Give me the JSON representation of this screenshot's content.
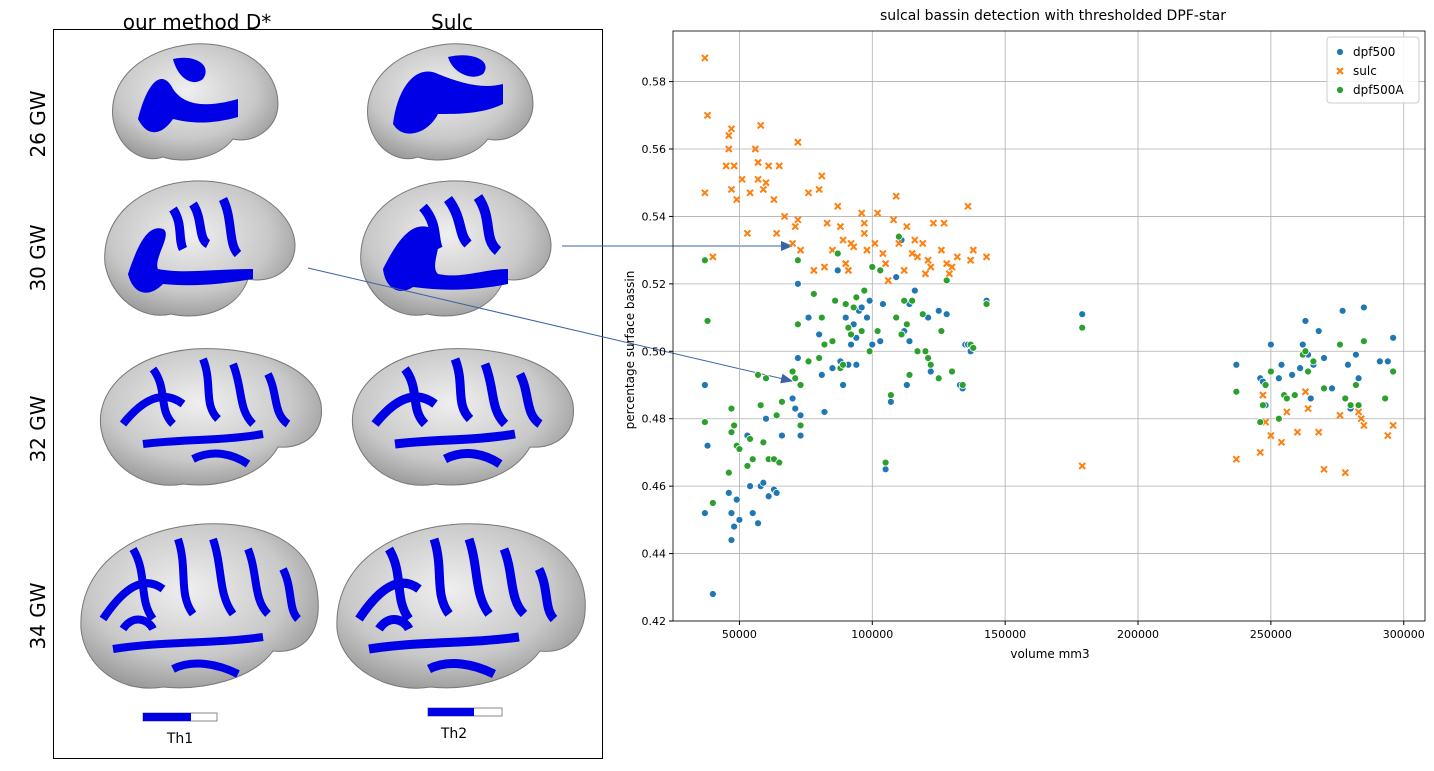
{
  "left_panel": {
    "col_titles": [
      "our method D*",
      "Sulc"
    ],
    "row_labels": [
      "26 GW",
      "30 GW",
      "32 GW",
      "34 GW"
    ],
    "threshold_labels": [
      "Th1",
      "Th2"
    ],
    "colors": {
      "basin": "#0000e6",
      "cortex": "#bfbfbf"
    }
  },
  "chart_data": {
    "type": "scatter",
    "title": "sulcal bassin detection with thresholded DPF-star",
    "xlabel": "volume  mm3",
    "ylabel": "percentage surface bassin",
    "xlim": [
      25000,
      308000
    ],
    "ylim": [
      0.42,
      0.595
    ],
    "xticks": [
      50000,
      100000,
      150000,
      200000,
      250000,
      300000
    ],
    "yticks": [
      0.42,
      0.44,
      0.46,
      0.48,
      0.5,
      0.52,
      0.54,
      0.56,
      0.58
    ],
    "grid": true,
    "legend_position": "top-right",
    "series": [
      {
        "name": "dpf500",
        "color": "#1f77b4",
        "marker": "circle",
        "points": [
          [
            37000,
            0.49
          ],
          [
            38000,
            0.472
          ],
          [
            37000,
            0.452
          ],
          [
            40000,
            0.428
          ],
          [
            46000,
            0.458
          ],
          [
            47000,
            0.452
          ],
          [
            47000,
            0.444
          ],
          [
            48000,
            0.448
          ],
          [
            49000,
            0.456
          ],
          [
            50000,
            0.45
          ],
          [
            53000,
            0.475
          ],
          [
            54000,
            0.46
          ],
          [
            55000,
            0.452
          ],
          [
            57000,
            0.449
          ],
          [
            58000,
            0.46
          ],
          [
            59000,
            0.461
          ],
          [
            60000,
            0.48
          ],
          [
            61000,
            0.457
          ],
          [
            63000,
            0.459
          ],
          [
            64000,
            0.458
          ],
          [
            66000,
            0.475
          ],
          [
            70000,
            0.486
          ],
          [
            71000,
            0.483
          ],
          [
            72000,
            0.498
          ],
          [
            72000,
            0.52
          ],
          [
            73000,
            0.481
          ],
          [
            73000,
            0.475
          ],
          [
            76000,
            0.51
          ],
          [
            80000,
            0.505
          ],
          [
            81000,
            0.493
          ],
          [
            82000,
            0.482
          ],
          [
            85000,
            0.495
          ],
          [
            87000,
            0.524
          ],
          [
            88000,
            0.497
          ],
          [
            89000,
            0.49
          ],
          [
            90000,
            0.51
          ],
          [
            91000,
            0.496
          ],
          [
            92000,
            0.502
          ],
          [
            93000,
            0.508
          ],
          [
            94000,
            0.504
          ],
          [
            94000,
            0.496
          ],
          [
            95000,
            0.512
          ],
          [
            96000,
            0.513
          ],
          [
            98000,
            0.51
          ],
          [
            99000,
            0.515
          ],
          [
            100000,
            0.502
          ],
          [
            103000,
            0.503
          ],
          [
            104000,
            0.514
          ],
          [
            105000,
            0.465
          ],
          [
            107000,
            0.485
          ],
          [
            109000,
            0.522
          ],
          [
            111000,
            0.533
          ],
          [
            112000,
            0.506
          ],
          [
            113000,
            0.49
          ],
          [
            114000,
            0.503
          ],
          [
            114000,
            0.514
          ],
          [
            116000,
            0.518
          ],
          [
            119000,
            0.511
          ],
          [
            121000,
            0.51
          ],
          [
            122000,
            0.494
          ],
          [
            125000,
            0.512
          ],
          [
            128000,
            0.511
          ],
          [
            133000,
            0.49
          ],
          [
            134000,
            0.489
          ],
          [
            135000,
            0.502
          ],
          [
            136000,
            0.502
          ],
          [
            137000,
            0.5
          ],
          [
            143000,
            0.515
          ],
          [
            179000,
            0.511
          ],
          [
            237000,
            0.496
          ],
          [
            246000,
            0.492
          ],
          [
            247000,
            0.491
          ],
          [
            248000,
            0.484
          ],
          [
            250000,
            0.502
          ],
          [
            253000,
            0.492
          ],
          [
            254000,
            0.496
          ],
          [
            258000,
            0.493
          ],
          [
            261000,
            0.495
          ],
          [
            262000,
            0.502
          ],
          [
            263000,
            0.509
          ],
          [
            264000,
            0.499
          ],
          [
            265000,
            0.486
          ],
          [
            266000,
            0.496
          ],
          [
            268000,
            0.506
          ],
          [
            270000,
            0.498
          ],
          [
            273000,
            0.489
          ],
          [
            277000,
            0.512
          ],
          [
            279000,
            0.496
          ],
          [
            280000,
            0.483
          ],
          [
            282000,
            0.499
          ],
          [
            283000,
            0.492
          ],
          [
            285000,
            0.513
          ],
          [
            291000,
            0.497
          ],
          [
            294000,
            0.497
          ],
          [
            296000,
            0.504
          ]
        ]
      },
      {
        "name": "sulc",
        "color": "#ff7f0e",
        "marker": "x",
        "points": [
          [
            37000,
            0.587
          ],
          [
            38000,
            0.57
          ],
          [
            37000,
            0.547
          ],
          [
            40000,
            0.528
          ],
          [
            45000,
            0.555
          ],
          [
            46000,
            0.564
          ],
          [
            46000,
            0.56
          ],
          [
            47000,
            0.548
          ],
          [
            47000,
            0.566
          ],
          [
            48000,
            0.555
          ],
          [
            49000,
            0.545
          ],
          [
            51000,
            0.551
          ],
          [
            53000,
            0.535
          ],
          [
            54000,
            0.547
          ],
          [
            56000,
            0.56
          ],
          [
            57000,
            0.556
          ],
          [
            57000,
            0.551
          ],
          [
            58000,
            0.567
          ],
          [
            59000,
            0.548
          ],
          [
            60000,
            0.55
          ],
          [
            61000,
            0.555
          ],
          [
            63000,
            0.545
          ],
          [
            64000,
            0.535
          ],
          [
            65000,
            0.555
          ],
          [
            67000,
            0.54
          ],
          [
            70000,
            0.532
          ],
          [
            71000,
            0.537
          ],
          [
            72000,
            0.539
          ],
          [
            72000,
            0.562
          ],
          [
            73000,
            0.53
          ],
          [
            76000,
            0.547
          ],
          [
            78000,
            0.524
          ],
          [
            80000,
            0.548
          ],
          [
            81000,
            0.552
          ],
          [
            82000,
            0.525
          ],
          [
            83000,
            0.538
          ],
          [
            85000,
            0.53
          ],
          [
            87000,
            0.543
          ],
          [
            88000,
            0.537
          ],
          [
            89000,
            0.533
          ],
          [
            90000,
            0.526
          ],
          [
            91000,
            0.524
          ],
          [
            92000,
            0.532
          ],
          [
            93000,
            0.531
          ],
          [
            96000,
            0.541
          ],
          [
            97000,
            0.538
          ],
          [
            97000,
            0.535
          ],
          [
            98000,
            0.53
          ],
          [
            101000,
            0.532
          ],
          [
            102000,
            0.541
          ],
          [
            104000,
            0.529
          ],
          [
            105000,
            0.526
          ],
          [
            106000,
            0.521
          ],
          [
            108000,
            0.539
          ],
          [
            109000,
            0.546
          ],
          [
            110000,
            0.532
          ],
          [
            112000,
            0.524
          ],
          [
            113000,
            0.537
          ],
          [
            115000,
            0.529
          ],
          [
            116000,
            0.533
          ],
          [
            117000,
            0.528
          ],
          [
            119000,
            0.532
          ],
          [
            120000,
            0.523
          ],
          [
            121000,
            0.527
          ],
          [
            122000,
            0.525
          ],
          [
            123000,
            0.538
          ],
          [
            126000,
            0.53
          ],
          [
            127000,
            0.538
          ],
          [
            128000,
            0.526
          ],
          [
            129000,
            0.523
          ],
          [
            130000,
            0.525
          ],
          [
            132000,
            0.528
          ],
          [
            136000,
            0.543
          ],
          [
            137000,
            0.527
          ],
          [
            138000,
            0.53
          ],
          [
            143000,
            0.528
          ],
          [
            179000,
            0.466
          ],
          [
            237000,
            0.468
          ],
          [
            246000,
            0.47
          ],
          [
            247000,
            0.487
          ],
          [
            248000,
            0.479
          ],
          [
            250000,
            0.475
          ],
          [
            254000,
            0.473
          ],
          [
            256000,
            0.482
          ],
          [
            260000,
            0.476
          ],
          [
            263000,
            0.488
          ],
          [
            264000,
            0.483
          ],
          [
            268000,
            0.476
          ],
          [
            270000,
            0.465
          ],
          [
            276000,
            0.481
          ],
          [
            278000,
            0.464
          ],
          [
            283000,
            0.482
          ],
          [
            284000,
            0.48
          ],
          [
            285000,
            0.478
          ],
          [
            294000,
            0.475
          ],
          [
            296000,
            0.478
          ]
        ]
      },
      {
        "name": "dpf500A",
        "color": "#2ca02c",
        "marker": "circle",
        "points": [
          [
            37000,
            0.527
          ],
          [
            38000,
            0.509
          ],
          [
            37000,
            0.479
          ],
          [
            40000,
            0.455
          ],
          [
            46000,
            0.464
          ],
          [
            47000,
            0.483
          ],
          [
            47000,
            0.476
          ],
          [
            48000,
            0.478
          ],
          [
            49000,
            0.472
          ],
          [
            50000,
            0.471
          ],
          [
            53000,
            0.466
          ],
          [
            54000,
            0.474
          ],
          [
            55000,
            0.468
          ],
          [
            57000,
            0.493
          ],
          [
            58000,
            0.484
          ],
          [
            59000,
            0.473
          ],
          [
            60000,
            0.492
          ],
          [
            61000,
            0.468
          ],
          [
            63000,
            0.468
          ],
          [
            64000,
            0.481
          ],
          [
            65000,
            0.467
          ],
          [
            66000,
            0.485
          ],
          [
            70000,
            0.494
          ],
          [
            71000,
            0.492
          ],
          [
            72000,
            0.508
          ],
          [
            72000,
            0.527
          ],
          [
            73000,
            0.49
          ],
          [
            73000,
            0.478
          ],
          [
            76000,
            0.497
          ],
          [
            78000,
            0.517
          ],
          [
            80000,
            0.498
          ],
          [
            81000,
            0.51
          ],
          [
            82000,
            0.502
          ],
          [
            85000,
            0.503
          ],
          [
            86000,
            0.515
          ],
          [
            87000,
            0.529
          ],
          [
            88000,
            0.495
          ],
          [
            89000,
            0.496
          ],
          [
            90000,
            0.514
          ],
          [
            91000,
            0.507
          ],
          [
            92000,
            0.505
          ],
          [
            93000,
            0.513
          ],
          [
            94000,
            0.516
          ],
          [
            96000,
            0.506
          ],
          [
            97000,
            0.518
          ],
          [
            99000,
            0.5
          ],
          [
            100000,
            0.525
          ],
          [
            102000,
            0.506
          ],
          [
            103000,
            0.524
          ],
          [
            105000,
            0.467
          ],
          [
            107000,
            0.487
          ],
          [
            109000,
            0.51
          ],
          [
            110000,
            0.534
          ],
          [
            111000,
            0.505
          ],
          [
            112000,
            0.515
          ],
          [
            113000,
            0.508
          ],
          [
            114000,
            0.493
          ],
          [
            115000,
            0.515
          ],
          [
            117000,
            0.5
          ],
          [
            119000,
            0.511
          ],
          [
            120000,
            0.5
          ],
          [
            121000,
            0.498
          ],
          [
            122000,
            0.496
          ],
          [
            125000,
            0.492
          ],
          [
            126000,
            0.506
          ],
          [
            128000,
            0.521
          ],
          [
            130000,
            0.494
          ],
          [
            134000,
            0.49
          ],
          [
            137000,
            0.502
          ],
          [
            138000,
            0.501
          ],
          [
            143000,
            0.514
          ],
          [
            179000,
            0.507
          ],
          [
            237000,
            0.488
          ],
          [
            246000,
            0.479
          ],
          [
            247000,
            0.484
          ],
          [
            248000,
            0.49
          ],
          [
            250000,
            0.494
          ],
          [
            253000,
            0.48
          ],
          [
            255000,
            0.487
          ],
          [
            256000,
            0.486
          ],
          [
            259000,
            0.487
          ],
          [
            262000,
            0.499
          ],
          [
            263000,
            0.5
          ],
          [
            264000,
            0.494
          ],
          [
            266000,
            0.497
          ],
          [
            270000,
            0.489
          ],
          [
            276000,
            0.502
          ],
          [
            278000,
            0.486
          ],
          [
            280000,
            0.484
          ],
          [
            282000,
            0.49
          ],
          [
            283000,
            0.484
          ],
          [
            285000,
            0.503
          ],
          [
            293000,
            0.486
          ],
          [
            296000,
            0.494
          ]
        ]
      }
    ]
  }
}
